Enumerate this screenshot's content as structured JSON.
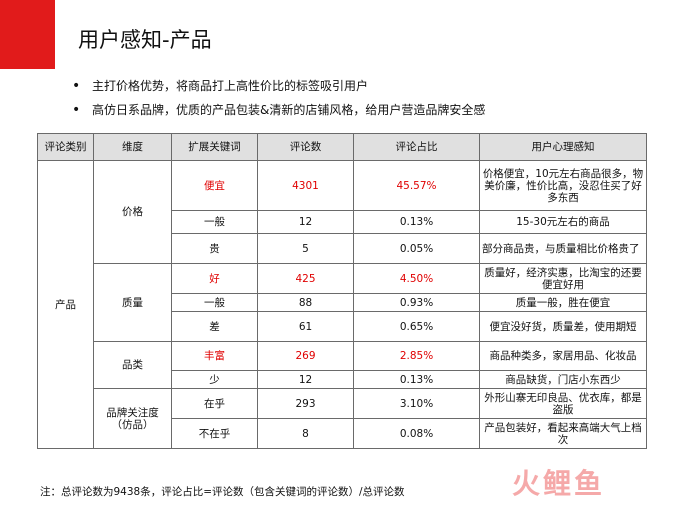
{
  "title": "用户感知-产品",
  "bullets": [
    "主打价格优势，将商品打上高性价比的标签吸引用户",
    "高仿日系品牌，优质的产品包装&清新的店铺风格，给用户营造品牌安全感"
  ],
  "table": {
    "headers": [
      "评论类别",
      "维度",
      "扩展关键词",
      "评论数",
      "评论占比",
      "用户心理感知"
    ],
    "category": "产品",
    "dimensions": [
      "价格",
      "质量",
      "品类",
      "品牌关注度（仿品）"
    ],
    "rows": [
      {
        "keyword": "便宜",
        "count": "4301",
        "share": "45.57%",
        "perception": "价格便宜，10元左右商品很多，物美价廉，性价比高，没忍住买了好多东西"
      },
      {
        "keyword": "一般",
        "count": "12",
        "share": "0.13%",
        "perception": "15-30元左右的商品"
      },
      {
        "keyword": "贵",
        "count": "5",
        "share": "0.05%",
        "perception": "部分商品贵，与质量相比价格贵了"
      },
      {
        "keyword": "好",
        "count": "425",
        "share": "4.50%",
        "perception": "质量好，经济实惠，比淘宝的还要便宜好用"
      },
      {
        "keyword": "一般",
        "count": "88",
        "share": "0.93%",
        "perception": "质量一般，胜在便宜"
      },
      {
        "keyword": "差",
        "count": "61",
        "share": "0.65%",
        "perception": "便宜没好货，质量差，使用期短"
      },
      {
        "keyword": "丰富",
        "count": "269",
        "share": "2.85%",
        "perception": "商品种类多，家居用品、化妆品"
      },
      {
        "keyword": "少",
        "count": "12",
        "share": "0.13%",
        "perception": "商品缺货，门店小东西少"
      },
      {
        "keyword": "在乎",
        "count": "293",
        "share": "3.10%",
        "perception": "外形山寨无印良品、优衣库，都是盗版"
      },
      {
        "keyword": "不在乎",
        "count": "8",
        "share": "0.08%",
        "perception": "产品包装好，看起来高端大气上档次"
      }
    ]
  },
  "note": "注：总评论数为9438条，评论占比=评论数（包含关键词的评论数）/总评论数",
  "logo_text": "火鲤鱼",
  "colors": {
    "accent": "#e11b1b",
    "highlight_text": "#e00000",
    "header_bg": "#e0e0e0"
  }
}
